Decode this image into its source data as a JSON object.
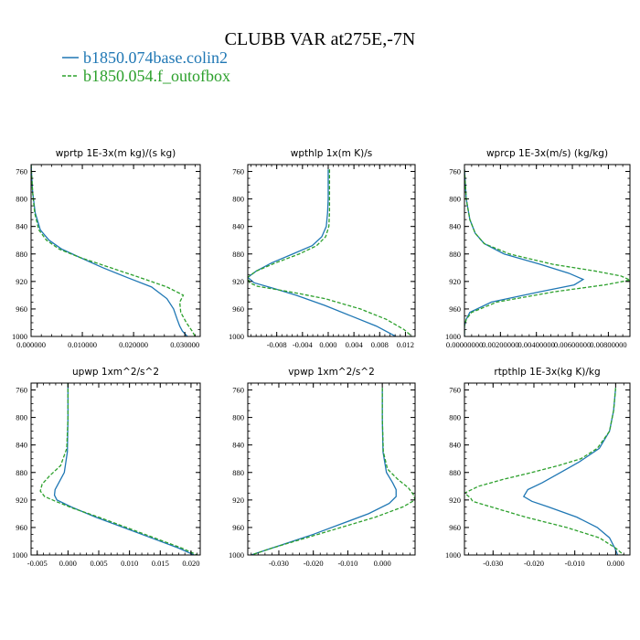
{
  "title": "CLUBB VAR at275E,-7N",
  "legend": [
    {
      "label": "b1850.074base.colin2",
      "color": "#1f77b4",
      "dash": "solid"
    },
    {
      "label": "b1850.054.f_outofbox",
      "color": "#2ca02c",
      "dash": "dashed"
    }
  ],
  "chart_data": [
    {
      "type": "line",
      "title": "wprtp  1E-3x(m kg)/(s kg)",
      "ylim": [
        1000,
        750
      ],
      "yticks": [
        760,
        800,
        840,
        880,
        920,
        960,
        1000
      ],
      "xlim": [
        0,
        0.033
      ],
      "xticks": [
        0,
        0.01,
        0.02,
        0.03
      ],
      "xticklabels": [
        "0.000000",
        "0.010000",
        "0.020000",
        "0.030000"
      ],
      "series": [
        {
          "name": "b1850.074base.colin2",
          "y": [
            750,
            790,
            820,
            845,
            860,
            873,
            885,
            900,
            915,
            928,
            945,
            960,
            975,
            985,
            992,
            1000
          ],
          "x": [
            0,
            0.0003,
            0.0008,
            0.0018,
            0.0035,
            0.006,
            0.0095,
            0.014,
            0.019,
            0.0235,
            0.0265,
            0.0278,
            0.0285,
            0.029,
            0.0295,
            0.0305
          ]
        },
        {
          "name": "b1850.054.f_outofbox",
          "y": [
            750,
            790,
            820,
            845,
            860,
            873,
            885,
            900,
            915,
            928,
            940,
            950,
            965,
            980,
            993,
            1000
          ],
          "x": [
            0,
            0.0003,
            0.0007,
            0.0015,
            0.003,
            0.0055,
            0.0095,
            0.0155,
            0.0215,
            0.0265,
            0.0297,
            0.029,
            0.0292,
            0.0303,
            0.0315,
            0.032
          ]
        }
      ]
    },
    {
      "type": "line",
      "title": "wpthlp  1x(m K)/s",
      "ylim": [
        1000,
        750
      ],
      "yticks": [
        760,
        800,
        840,
        880,
        920,
        960,
        1000
      ],
      "xlim": [
        -0.0125,
        0.0135
      ],
      "xticks": [
        -0.008,
        -0.004,
        0,
        0.004,
        0.008,
        0.012
      ],
      "xticklabels": [
        "-0.008",
        "-0.004",
        "0.000",
        "0.004",
        "0.008",
        "0.012"
      ],
      "series": [
        {
          "name": "b1850.074base.colin2",
          "y": [
            757,
            780,
            800,
            820,
            840,
            855,
            868,
            880,
            893,
            905,
            914,
            922,
            930,
            940,
            955,
            970,
            985,
            1000
          ],
          "x": [
            0,
            0,
            0,
            -0.0001,
            -0.0003,
            -0.001,
            -0.0025,
            -0.0055,
            -0.0088,
            -0.0112,
            -0.0125,
            -0.0115,
            -0.0085,
            -0.005,
            -0.0005,
            0.0035,
            0.0075,
            0.0105
          ]
        },
        {
          "name": "b1850.054.f_outofbox",
          "y": [
            757,
            780,
            800,
            820,
            840,
            855,
            868,
            880,
            893,
            905,
            914,
            922,
            927,
            935,
            945,
            960,
            975,
            990,
            1000
          ],
          "x": [
            0.0002,
            0.0002,
            0.0002,
            0.0002,
            0.0001,
            -0.0004,
            -0.0018,
            -0.0045,
            -0.0082,
            -0.0112,
            -0.0125,
            -0.0122,
            -0.011,
            -0.006,
            -0.0005,
            0.005,
            0.009,
            0.0118,
            0.013
          ]
        }
      ]
    },
    {
      "type": "line",
      "title": "wprcp  1E-3x(m/s) (kg/kg)",
      "ylim": [
        1000,
        750
      ],
      "yticks": [
        760,
        800,
        840,
        880,
        920,
        960,
        1000
      ],
      "xlim": [
        0,
        0.0092
      ],
      "xticks": [
        0,
        0.002,
        0.004,
        0.006,
        0.008
      ],
      "xticklabels": [
        "0.00000000",
        "0.00200000",
        "0.00400000",
        "0.00600000",
        "0.00800000"
      ],
      "series": [
        {
          "name": "b1850.074base.colin2",
          "y": [
            757,
            800,
            830,
            850,
            865,
            880,
            895,
            908,
            917,
            925,
            935,
            950,
            965,
            975,
            985,
            1000
          ],
          "x": [
            0.0,
            0.0001,
            0.0003,
            0.0006,
            0.0011,
            0.0022,
            0.0042,
            0.0058,
            0.0066,
            0.0061,
            0.0042,
            0.0015,
            0.0003,
            0.0001,
            0,
            0
          ]
        },
        {
          "name": "b1850.054.f_outofbox",
          "y": [
            757,
            800,
            830,
            850,
            865,
            880,
            895,
            905,
            912,
            918,
            925,
            935,
            950,
            965,
            975,
            985,
            1000
          ],
          "x": [
            0.0,
            0.0001,
            0.0003,
            0.0006,
            0.0011,
            0.0025,
            0.0049,
            0.0073,
            0.0087,
            0.0092,
            0.0078,
            0.005,
            0.0018,
            0.0004,
            0.0001,
            0,
            0
          ]
        }
      ]
    },
    {
      "type": "line",
      "title": "upwp  1xm^2/s^2",
      "ylim": [
        1000,
        750
      ],
      "yticks": [
        760,
        800,
        840,
        880,
        920,
        960,
        1000
      ],
      "xlim": [
        -0.006,
        0.0215
      ],
      "xticks": [
        -0.005,
        0,
        0.005,
        0.01,
        0.015,
        0.02
      ],
      "xticklabels": [
        "-0.005",
        "0.000",
        "0.005",
        "0.010",
        "0.015",
        "0.020"
      ],
      "series": [
        {
          "name": "b1850.074base.colin2",
          "y": [
            750,
            800,
            850,
            880,
            895,
            905,
            913,
            920,
            930,
            945,
            960,
            975,
            990,
            1000
          ],
          "x": [
            0,
            0,
            -0.0001,
            -0.0006,
            -0.0015,
            -0.0021,
            -0.0022,
            -0.0018,
            0.0005,
            0.0045,
            0.009,
            0.0135,
            0.018,
            0.0205
          ]
        },
        {
          "name": "b1850.054.f_outofbox",
          "y": [
            750,
            800,
            845,
            870,
            885,
            897,
            907,
            915,
            922,
            932,
            945,
            960,
            975,
            990,
            1000
          ],
          "x": [
            0,
            0,
            -0.0002,
            -0.0012,
            -0.003,
            -0.0042,
            -0.0045,
            -0.0038,
            -0.002,
            0.0008,
            0.005,
            0.0095,
            0.014,
            0.0185,
            0.021
          ]
        }
      ]
    },
    {
      "type": "line",
      "title": "vpwp  1xm^2/s^2",
      "ylim": [
        1000,
        750
      ],
      "yticks": [
        760,
        800,
        840,
        880,
        920,
        960,
        1000
      ],
      "xlim": [
        -0.039,
        0.0095
      ],
      "xticks": [
        -0.03,
        -0.02,
        -0.01,
        0
      ],
      "xticklabels": [
        "-0.030",
        "-0.020",
        "-0.010",
        "0.000"
      ],
      "series": [
        {
          "name": "b1850.074base.colin2",
          "y": [
            757,
            800,
            850,
            880,
            895,
            905,
            915,
            925,
            940,
            955,
            970,
            985,
            1000
          ],
          "x": [
            0,
            0,
            0.0002,
            0.0012,
            0.003,
            0.004,
            0.004,
            0.002,
            -0.004,
            -0.012,
            -0.02,
            -0.029,
            -0.038
          ]
        },
        {
          "name": "b1850.054.f_outofbox",
          "y": [
            757,
            800,
            850,
            875,
            890,
            902,
            912,
            920,
            930,
            945,
            960,
            975,
            990,
            1000
          ],
          "x": [
            0,
            0,
            0.0003,
            0.0015,
            0.0045,
            0.0075,
            0.009,
            0.0095,
            0.006,
            -0.002,
            -0.012,
            -0.022,
            -0.032,
            -0.038
          ]
        }
      ]
    },
    {
      "type": "line",
      "title": "rtpthlp  1E-3x(kg K)/kg",
      "ylim": [
        1000,
        750
      ],
      "yticks": [
        760,
        800,
        840,
        880,
        920,
        960,
        1000
      ],
      "xlim": [
        -0.037,
        0.0035
      ],
      "xticks": [
        -0.03,
        -0.02,
        -0.01,
        0
      ],
      "xticklabels": [
        "-0.030",
        "-0.020",
        "-0.010",
        "0.000"
      ],
      "series": [
        {
          "name": "b1850.074base.colin2",
          "y": [
            757,
            790,
            820,
            845,
            865,
            880,
            895,
            905,
            915,
            922,
            930,
            945,
            960,
            975,
            990,
            1000
          ],
          "x": [
            0,
            -0.0005,
            -0.0015,
            -0.004,
            -0.009,
            -0.0135,
            -0.018,
            -0.0215,
            -0.0225,
            -0.0205,
            -0.0165,
            -0.0095,
            -0.0045,
            -0.0015,
            -0.0002,
            0.0005
          ]
        },
        {
          "name": "b1850.054.f_outofbox",
          "y": [
            757,
            790,
            820,
            845,
            860,
            870,
            880,
            890,
            900,
            910,
            917,
            922,
            930,
            945,
            960,
            975,
            990,
            1000
          ],
          "x": [
            0,
            -0.0005,
            -0.0015,
            -0.0045,
            -0.0085,
            -0.014,
            -0.0205,
            -0.0275,
            -0.0335,
            -0.037,
            -0.0355,
            -0.035,
            -0.0305,
            -0.022,
            -0.012,
            -0.004,
            0,
            0.002
          ]
        }
      ]
    }
  ]
}
